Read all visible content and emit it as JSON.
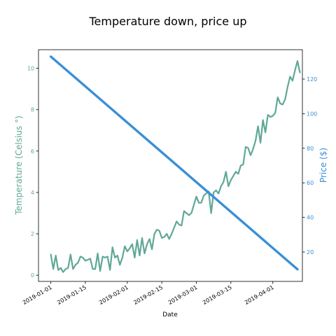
{
  "chart_data": {
    "type": "line",
    "title": "Temperature down, price up",
    "xlabel": "Date",
    "ylabel_left": "Temperature (Celsius °)",
    "ylabel_right": "Price ($)",
    "grid": false,
    "x_tick_labels": [
      "2019-01-01",
      "2019-01-15",
      "2019-02-01",
      "2019-02-15",
      "2019-03-01",
      "2019-03-15",
      "2019-04-01"
    ],
    "xlim": [
      "2018-12-27",
      "2019-04-13"
    ],
    "left_axis": {
      "ylim": [
        -0.3,
        10.9
      ],
      "ticks": [
        0,
        2,
        4,
        6,
        8,
        10
      ],
      "color": "#5fa897"
    },
    "right_axis": {
      "ylim": [
        3,
        137
      ],
      "ticks": [
        20,
        40,
        60,
        80,
        100,
        120
      ],
      "color": "#3a8fd6"
    },
    "series": [
      {
        "axis": "left",
        "color": "#5fa897",
        "x_start": "2019-01-01",
        "x_step_days": 1,
        "values": [
          1.0,
          0.3,
          0.95,
          0.25,
          0.35,
          0.15,
          0.3,
          0.35,
          1.0,
          0.3,
          0.5,
          0.6,
          0.9,
          0.85,
          0.7,
          0.75,
          0.8,
          0.3,
          0.3,
          1.05,
          0.2,
          0.9,
          0.85,
          0.9,
          0.25,
          1.35,
          0.85,
          0.95,
          0.5,
          0.85,
          1.4,
          1.15,
          1.3,
          1.5,
          0.85,
          1.7,
          0.95,
          1.8,
          1.05,
          1.5,
          1.75,
          1.25,
          2.0,
          2.2,
          2.15,
          1.8,
          1.85,
          2.0,
          1.75,
          2.0,
          2.3,
          2.6,
          2.45,
          2.4,
          3.1,
          3.0,
          2.9,
          3.0,
          3.4,
          3.8,
          3.5,
          3.5,
          3.85,
          3.95,
          4.05,
          3.0,
          4.0,
          4.1,
          3.95,
          4.3,
          4.5,
          5.0,
          4.3,
          4.6,
          4.8,
          5.0,
          4.9,
          5.3,
          5.35,
          6.2,
          6.15,
          5.8,
          6.1,
          6.5,
          7.2,
          6.4,
          7.5,
          6.9,
          7.75,
          7.65,
          7.7,
          7.85,
          8.6,
          8.3,
          8.25,
          8.5,
          9.1,
          9.6,
          9.4,
          9.9,
          10.35,
          9.8
        ]
      },
      {
        "axis": "right",
        "color": "#3a8fd6",
        "x_start": "2019-01-01",
        "x_end": "2019-04-11",
        "start_value": 133,
        "end_value": 10
      }
    ]
  }
}
